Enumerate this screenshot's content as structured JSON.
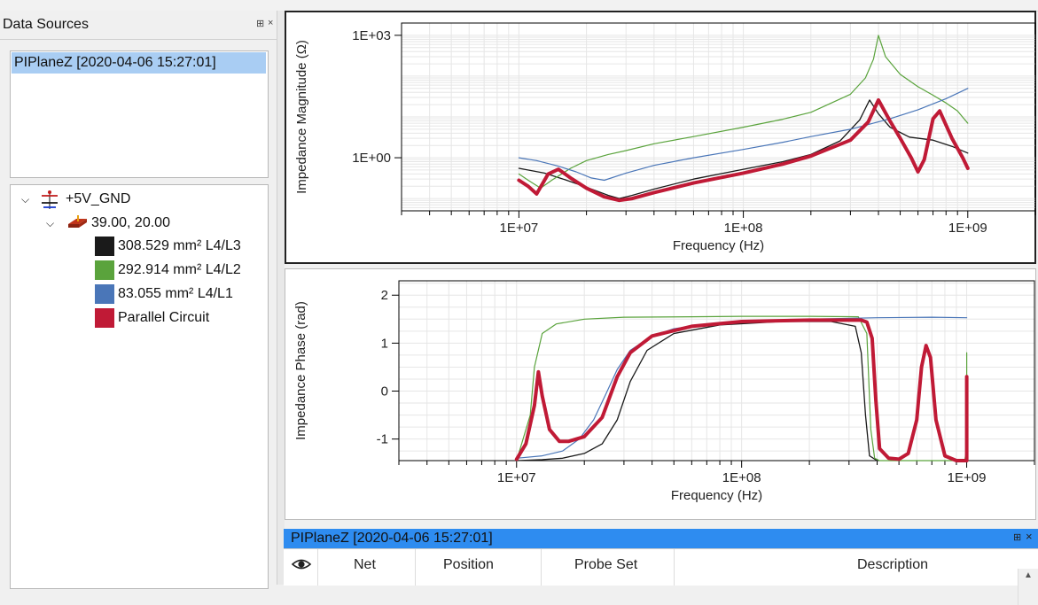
{
  "left": {
    "title": "Data Sources",
    "header_icons": {
      "pin": "⊞",
      "close": "×"
    },
    "data_source_item": "PIPlaneZ [2020-04-06 15:27:01]",
    "tree": {
      "net": "+5V_GND",
      "location": "39.00, 20.00",
      "items": [
        {
          "label": "308.529 mm² L4/L3",
          "color": "#1a1a1a"
        },
        {
          "label": "292.914 mm² L4/L2",
          "color": "#5aa33c"
        },
        {
          "label": "83.055 mm² L4/L1",
          "color": "#4a76b8"
        },
        {
          "label": "Parallel Circuit",
          "color": "#c01a36"
        }
      ]
    }
  },
  "chart_data": [
    {
      "type": "line",
      "xlabel": "Frequency (Hz)",
      "ylabel": "Impedance Magnitude (Ω)",
      "x_scale": "log",
      "y_scale": "log",
      "xlim": [
        3000000.0,
        2000000000.0
      ],
      "ylim": [
        0.05,
        2000
      ],
      "xticks": [
        "1E+07",
        "1E+08",
        "1E+09"
      ],
      "yticks": [
        "1E+00",
        "1E+03"
      ],
      "grid": true,
      "series": [
        {
          "name": "308.529 mm² L4/L3",
          "color": "#1a1a1a",
          "width": 1.3,
          "x": [
            10000000.0,
            13000000.0,
            16000000.0,
            20000000.0,
            25000000.0,
            28000000.0,
            32000000.0,
            40000000.0,
            60000000.0,
            100000000.0,
            150000000.0,
            200000000.0,
            270000000.0,
            330000000.0,
            365000000.0,
            400000000.0,
            450000000.0,
            550000000.0,
            700000000.0,
            850000000.0,
            1000000000.0
          ],
          "y": [
            0.55,
            0.42,
            0.29,
            0.19,
            0.12,
            0.1,
            0.12,
            0.17,
            0.3,
            0.52,
            0.8,
            1.2,
            2.6,
            8.5,
            26,
            12,
            5.6,
            3.2,
            2.7,
            1.9,
            1.3
          ]
        },
        {
          "name": "292.914 mm² L4/L2",
          "color": "#5aa33c",
          "width": 1.2,
          "x": [
            10000000.0,
            11000000.0,
            12500000.0,
            14000000.0,
            17000000.0,
            20000000.0,
            25000000.0,
            30000000.0,
            40000000.0,
            60000000.0,
            100000000.0,
            150000000.0,
            200000000.0,
            300000000.0,
            350000000.0,
            380000000.0,
            400000000.0,
            430000000.0,
            500000000.0,
            600000000.0,
            700000000.0,
            800000000.0,
            900000000.0,
            1000000000.0
          ],
          "y": [
            0.4,
            0.28,
            0.18,
            0.28,
            0.55,
            0.85,
            1.2,
            1.5,
            2.2,
            3.3,
            5.6,
            8.8,
            13,
            36,
            90,
            260,
            1000,
            300,
            110,
            55,
            34,
            22,
            14,
            7
          ]
        },
        {
          "name": "83.055 mm² L4/L1",
          "color": "#4a76b8",
          "width": 1.2,
          "x": [
            10000000.0,
            12000000.0,
            15000000.0,
            18000000.0,
            21000000.0,
            24000000.0,
            30000000.0,
            40000000.0,
            60000000.0,
            100000000.0,
            150000000.0,
            200000000.0,
            300000000.0,
            450000000.0,
            600000000.0,
            800000000.0,
            1000000000.0
          ],
          "y": [
            1.0,
            0.85,
            0.62,
            0.45,
            0.32,
            0.28,
            0.42,
            0.65,
            1.0,
            1.6,
            2.4,
            3.3,
            5.0,
            9.0,
            15,
            28,
            50
          ]
        },
        {
          "name": "Parallel Circuit",
          "color": "#c01a36",
          "width": 4,
          "x": [
            10000000.0,
            11000000.0,
            12000000.0,
            13500000.0,
            15000000.0,
            17000000.0,
            20000000.0,
            24000000.0,
            28000000.0,
            32000000.0,
            40000000.0,
            60000000.0,
            100000000.0,
            150000000.0,
            200000000.0,
            300000000.0,
            360000000.0,
            400000000.0,
            450000000.0,
            500000000.0,
            560000000.0,
            600000000.0,
            640000000.0,
            700000000.0,
            750000000.0,
            850000000.0,
            950000000.0,
            1000000000.0
          ],
          "y": [
            0.28,
            0.2,
            0.13,
            0.4,
            0.52,
            0.32,
            0.18,
            0.11,
            0.09,
            0.1,
            0.14,
            0.24,
            0.42,
            0.7,
            1.1,
            2.7,
            7.5,
            26,
            8,
            3.0,
            1.0,
            0.45,
            0.9,
            9,
            14,
            3.0,
            1.0,
            0.55
          ]
        }
      ]
    },
    {
      "type": "line",
      "xlabel": "Frequency (Hz)",
      "ylabel": "Impedance Phase (rad)",
      "x_scale": "log",
      "xlim": [
        3000000.0,
        2000000000.0
      ],
      "ylim": [
        -1.45,
        2.3
      ],
      "xticks": [
        "1E+07",
        "1E+08",
        "1E+09"
      ],
      "yticks": [
        "-1",
        "0",
        "1",
        "2"
      ],
      "grid": true,
      "series": [
        {
          "name": "308.529 mm² L4/L3",
          "color": "#1a1a1a",
          "width": 1.3,
          "x": [
            10000000.0,
            13000000.0,
            16000000.0,
            20000000.0,
            24000000.0,
            28000000.0,
            32000000.0,
            38000000.0,
            50000000.0,
            80000000.0,
            150000000.0,
            250000000.0,
            320000000.0,
            340000000.0,
            355000000.0,
            370000000.0,
            400000000.0
          ],
          "y": [
            -1.45,
            -1.43,
            -1.4,
            -1.3,
            -1.1,
            -0.6,
            0.2,
            0.85,
            1.2,
            1.38,
            1.45,
            1.45,
            1.35,
            0.8,
            -0.5,
            -1.35,
            -1.45
          ]
        },
        {
          "name": "292.914 mm² L4/L2",
          "color": "#5aa33c",
          "width": 1.2,
          "x": [
            10000000.0,
            11500000.0,
            12000000.0,
            13000000.0,
            15000000.0,
            20000000.0,
            30000000.0,
            60000000.0,
            100000000.0,
            200000000.0,
            330000000.0,
            360000000.0,
            375000000.0,
            390000000.0,
            410000000.0,
            430000000.0,
            500000000.0,
            700000000.0,
            980000000.0,
            1000000000.0,
            1000000000.0
          ],
          "y": [
            -1.45,
            -0.5,
            0.5,
            1.2,
            1.4,
            1.5,
            1.54,
            1.55,
            1.56,
            1.56,
            1.55,
            1.2,
            -0.8,
            -1.4,
            -1.45,
            -1.45,
            -1.45,
            -1.45,
            -1.45,
            -1.2,
            0.8
          ]
        },
        {
          "name": "83.055 mm² L4/L1",
          "color": "#4a76b8",
          "width": 1.2,
          "x": [
            10000000.0,
            13000000.0,
            16000000.0,
            19000000.0,
            22000000.0,
            25000000.0,
            28000000.0,
            32000000.0,
            40000000.0,
            50000000.0,
            70000000.0,
            100000000.0,
            200000000.0,
            400000000.0,
            700000000.0,
            1000000000.0
          ],
          "y": [
            -1.4,
            -1.35,
            -1.25,
            -1.0,
            -0.6,
            -0.05,
            0.45,
            0.85,
            1.15,
            1.3,
            1.4,
            1.45,
            1.5,
            1.53,
            1.54,
            1.53
          ]
        },
        {
          "name": "Parallel Circuit",
          "color": "#c01a36",
          "width": 4,
          "x": [
            10000000.0,
            11000000.0,
            12000000.0,
            12500000.0,
            13000000.0,
            14000000.0,
            15500000.0,
            17000000.0,
            20000000.0,
            24000000.0,
            28000000.0,
            32000000.0,
            40000000.0,
            60000000.0,
            100000000.0,
            200000000.0,
            340000000.0,
            360000000.0,
            380000000.0,
            395000000.0,
            410000000.0,
            450000000.0,
            500000000.0,
            550000000.0,
            600000000.0,
            630000000.0,
            660000000.0,
            690000000.0,
            730000000.0,
            800000000.0,
            900000000.0,
            1000000000.0,
            1000000000.0
          ],
          "y": [
            -1.42,
            -1.1,
            -0.3,
            0.4,
            -0.1,
            -0.8,
            -1.05,
            -1.05,
            -0.95,
            -0.55,
            0.3,
            0.8,
            1.15,
            1.35,
            1.45,
            1.48,
            1.48,
            1.44,
            1.1,
            -0.2,
            -1.2,
            -1.4,
            -1.42,
            -1.3,
            -0.6,
            0.5,
            0.95,
            0.7,
            -0.6,
            -1.35,
            -1.45,
            -1.45,
            0.3
          ]
        }
      ]
    }
  ],
  "bottom": {
    "title": "PIPlaneZ [2020-04-06 15:27:01]",
    "header_icons": {
      "pin": "⊞",
      "close": "×"
    },
    "columns": [
      "Net",
      "Position",
      "Probe Set",
      "Description"
    ],
    "eye_icon": "👁"
  }
}
